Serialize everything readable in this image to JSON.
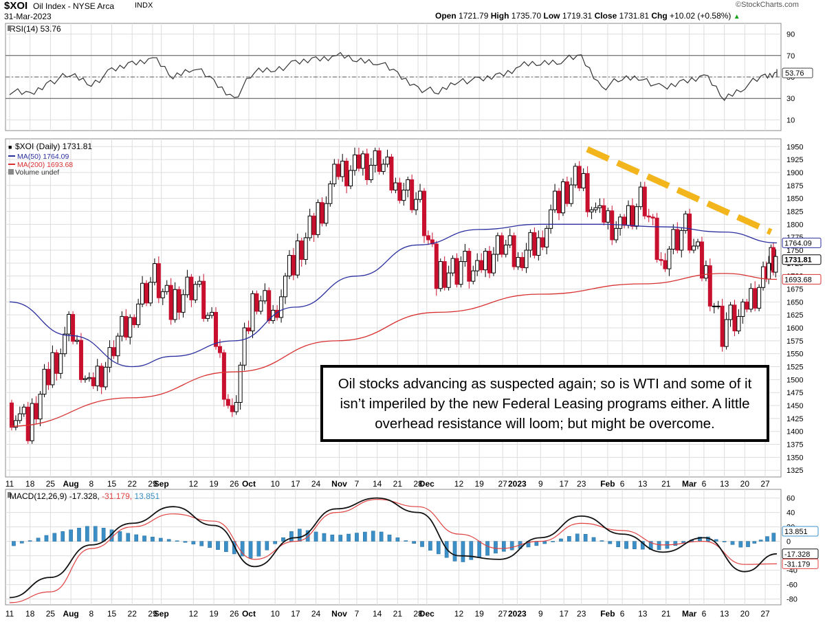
{
  "header": {
    "symbol": "$XOI",
    "name": "Oil Index - NYSE Arca",
    "exchange": "INDX",
    "date": "31-Mar-2023",
    "brand": "©StockCharts.com",
    "quote": {
      "open_label": "Open",
      "open": "1721.79",
      "high_label": "High",
      "high": "1735.70",
      "low_label": "Low",
      "low": "1719.31",
      "close_label": "Close",
      "close": "1731.81",
      "chg_label": "Chg",
      "chg": "+10.02 (+0.58%)",
      "chg_arrow": "▲"
    }
  },
  "note": {
    "text": "Oil stocks advancing as suspected again; so is WTI and some of it isn’t imperiled by the new Federal Leasing programs either. A little overhead resistance will loom; but might be overcome."
  },
  "chart_data": [
    {
      "type": "line",
      "title": "RSI(14) 53.76",
      "indicator": "RSI(14)",
      "ylim": [
        0,
        100
      ],
      "y_ticks": [
        10,
        30,
        50,
        70,
        90
      ],
      "reference_lines": [
        30,
        50,
        70
      ],
      "last_value_label": "53.76",
      "series": [
        {
          "name": "RSI(14)",
          "color": "#333333",
          "x": [
            "2022-07-11",
            "2022-07-18",
            "2022-07-25",
            "2022-08-01",
            "2022-08-08",
            "2022-08-15",
            "2022-08-22",
            "2022-08-29",
            "2022-09-05",
            "2022-09-12",
            "2022-09-19",
            "2022-09-26",
            "2022-10-03",
            "2022-10-10",
            "2022-10-17",
            "2022-10-24",
            "2022-10-31",
            "2022-11-07",
            "2022-11-14",
            "2022-11-21",
            "2022-11-28",
            "2022-12-05",
            "2022-12-12",
            "2022-12-19",
            "2022-12-26",
            "2023-01-02",
            "2023-01-09",
            "2023-01-16",
            "2023-01-23",
            "2023-01-30",
            "2023-02-06",
            "2023-02-13",
            "2023-02-20",
            "2023-02-27",
            "2023-03-06",
            "2023-03-13",
            "2023-03-20",
            "2023-03-27",
            "2023-03-31"
          ],
          "values": [
            37,
            33,
            46,
            52,
            44,
            55,
            63,
            68,
            50,
            60,
            45,
            30,
            55,
            58,
            62,
            67,
            70,
            66,
            65,
            52,
            40,
            35,
            48,
            46,
            52,
            60,
            63,
            66,
            68,
            40,
            48,
            50,
            38,
            46,
            52,
            30,
            42,
            50,
            53.76
          ]
        }
      ]
    },
    {
      "type": "candlestick",
      "title": "$XOI (Daily) 1731.81",
      "ylim": [
        1312,
        1965
      ],
      "y_ticks": [
        1325,
        1350,
        1375,
        1400,
        1425,
        1450,
        1475,
        1500,
        1525,
        1550,
        1575,
        1600,
        1625,
        1650,
        1675,
        1700,
        1725,
        1750,
        1775,
        1800,
        1825,
        1850,
        1875,
        1900,
        1925,
        1950
      ],
      "x_tick_labels": [
        "11",
        "18",
        "25",
        "Aug",
        "8",
        "15",
        "22",
        "29",
        "Sep",
        "12",
        "19",
        "26",
        "Oct",
        "10",
        "17",
        "24",
        "Nov",
        "7",
        "14",
        "21",
        "28",
        "Dec",
        "12",
        "19",
        "27",
        "2023",
        "9",
        "17",
        "23",
        "Feb",
        "6",
        "13",
        "21",
        "Mar",
        "6",
        "13",
        "20",
        "27"
      ],
      "legend": [
        "$XOI (Daily) 1731.81",
        "MA(50) 1764.09",
        "MA(200) 1693.68",
        "Volume undef"
      ],
      "series": [
        {
          "name": "$XOI close",
          "color_up": "#000000",
          "color_down": "#c8102e",
          "x": [
            "2022-07-11",
            "2022-07-18",
            "2022-07-25",
            "2022-08-01",
            "2022-08-08",
            "2022-08-15",
            "2022-08-22",
            "2022-08-29",
            "2022-09-05",
            "2022-09-12",
            "2022-09-19",
            "2022-09-26",
            "2022-10-03",
            "2022-10-10",
            "2022-10-17",
            "2022-10-24",
            "2022-10-31",
            "2022-11-07",
            "2022-11-14",
            "2022-11-21",
            "2022-11-28",
            "2022-12-05",
            "2022-12-12",
            "2022-12-19",
            "2022-12-26",
            "2023-01-02",
            "2023-01-09",
            "2023-01-16",
            "2023-01-23",
            "2023-01-30",
            "2023-02-06",
            "2023-02-13",
            "2023-02-20",
            "2023-02-27",
            "2023-03-06",
            "2023-03-13",
            "2023-03-20",
            "2023-03-27",
            "2023-03-31"
          ],
          "values": [
            1455,
            1400,
            1520,
            1590,
            1480,
            1550,
            1620,
            1700,
            1640,
            1690,
            1600,
            1420,
            1660,
            1640,
            1720,
            1810,
            1880,
            1910,
            1930,
            1880,
            1860,
            1700,
            1720,
            1700,
            1760,
            1730,
            1780,
            1840,
            1900,
            1800,
            1790,
            1860,
            1730,
            1800,
            1720,
            1600,
            1620,
            1700,
            1731.81
          ]
        },
        {
          "name": "MA(50) 1764.09",
          "color": "#2a2f9e",
          "x": [
            "2022-07-11",
            "2022-08-01",
            "2022-08-22",
            "2022-09-05",
            "2022-09-26",
            "2022-10-17",
            "2022-11-07",
            "2022-11-28",
            "2022-12-19",
            "2023-01-09",
            "2023-01-30",
            "2023-02-20",
            "2023-03-13",
            "2023-03-31"
          ],
          "values": [
            1650,
            1585,
            1525,
            1545,
            1575,
            1640,
            1700,
            1760,
            1790,
            1800,
            1800,
            1795,
            1785,
            1764.09
          ]
        },
        {
          "name": "MA(200) 1693.68",
          "color": "#d83030",
          "x": [
            "2022-07-11",
            "2022-08-22",
            "2022-09-26",
            "2022-10-31",
            "2022-12-05",
            "2023-01-09",
            "2023-02-13",
            "2023-03-13",
            "2023-03-31"
          ],
          "values": [
            1410,
            1465,
            1515,
            1575,
            1630,
            1665,
            1685,
            1705,
            1693.68
          ]
        }
      ],
      "annotations": [
        {
          "type": "dashed-trendline",
          "color": "#f2b51b",
          "from": [
            "2023-01-25",
            1945
          ],
          "to": [
            "2023-03-29",
            1785
          ]
        }
      ],
      "last_labels": {
        "ma50": "1764.09",
        "close": "1731.81",
        "ma200": "1693.68"
      }
    },
    {
      "type": "line",
      "title": "MACD(12,26,9) -17.328, -31.179, 13.851",
      "indicator": "MACD(12,26,9)",
      "ylim": [
        -88,
        72
      ],
      "y_ticks": [
        -80,
        -60,
        -40,
        -20,
        0,
        20,
        40,
        60
      ],
      "last_labels": {
        "histogram": "13.851",
        "macd": "-17.328",
        "signal": "-31.179"
      },
      "series": [
        {
          "name": "MACD",
          "color": "#111111",
          "x": [
            "2022-07-11",
            "2022-07-25",
            "2022-08-08",
            "2022-08-22",
            "2022-09-05",
            "2022-09-19",
            "2022-10-03",
            "2022-10-17",
            "2022-10-31",
            "2022-11-14",
            "2022-11-28",
            "2022-12-12",
            "2022-12-26",
            "2023-01-09",
            "2023-01-23",
            "2023-02-06",
            "2023-02-20",
            "2023-03-06",
            "2023-03-20",
            "2023-03-31"
          ],
          "values": [
            -78,
            -50,
            -5,
            25,
            48,
            22,
            -35,
            5,
            45,
            60,
            40,
            -20,
            -25,
            5,
            35,
            10,
            -15,
            5,
            -42,
            -17.328
          ]
        },
        {
          "name": "Signal",
          "color": "#e04040",
          "x": [
            "2022-07-11",
            "2022-07-25",
            "2022-08-08",
            "2022-08-22",
            "2022-09-05",
            "2022-09-19",
            "2022-10-03",
            "2022-10-17",
            "2022-10-31",
            "2022-11-14",
            "2022-11-28",
            "2022-12-12",
            "2022-12-26",
            "2023-01-09",
            "2023-01-23",
            "2023-02-06",
            "2023-02-20",
            "2023-03-06",
            "2023-03-20",
            "2023-03-31"
          ],
          "values": [
            -85,
            -70,
            -10,
            20,
            38,
            28,
            -25,
            0,
            40,
            58,
            48,
            10,
            -10,
            0,
            25,
            15,
            -5,
            0,
            -32,
            -31.179
          ]
        },
        {
          "name": "Histogram",
          "color": "#3b8fc6",
          "x": [
            "2022-07-11",
            "2022-07-25",
            "2022-08-08",
            "2022-08-22",
            "2022-09-05",
            "2022-09-19",
            "2022-10-03",
            "2022-10-17",
            "2022-10-31",
            "2022-11-14",
            "2022-11-28",
            "2022-12-12",
            "2022-12-26",
            "2023-01-09",
            "2023-01-23",
            "2023-02-06",
            "2023-02-20",
            "2023-03-06",
            "2023-03-20",
            "2023-03-31"
          ],
          "values": [
            -8,
            10,
            22,
            10,
            2,
            -10,
            -25,
            18,
            8,
            15,
            -5,
            -30,
            -15,
            -5,
            12,
            -10,
            -12,
            8,
            -10,
            13.851
          ]
        }
      ]
    }
  ],
  "colors": {
    "up": "#000000",
    "down": "#c8102e",
    "ma50": "#2a2f9e",
    "ma200": "#d83030",
    "trend": "#f2b51b",
    "hist": "#3b8fc6",
    "grid": "#dddddd"
  }
}
